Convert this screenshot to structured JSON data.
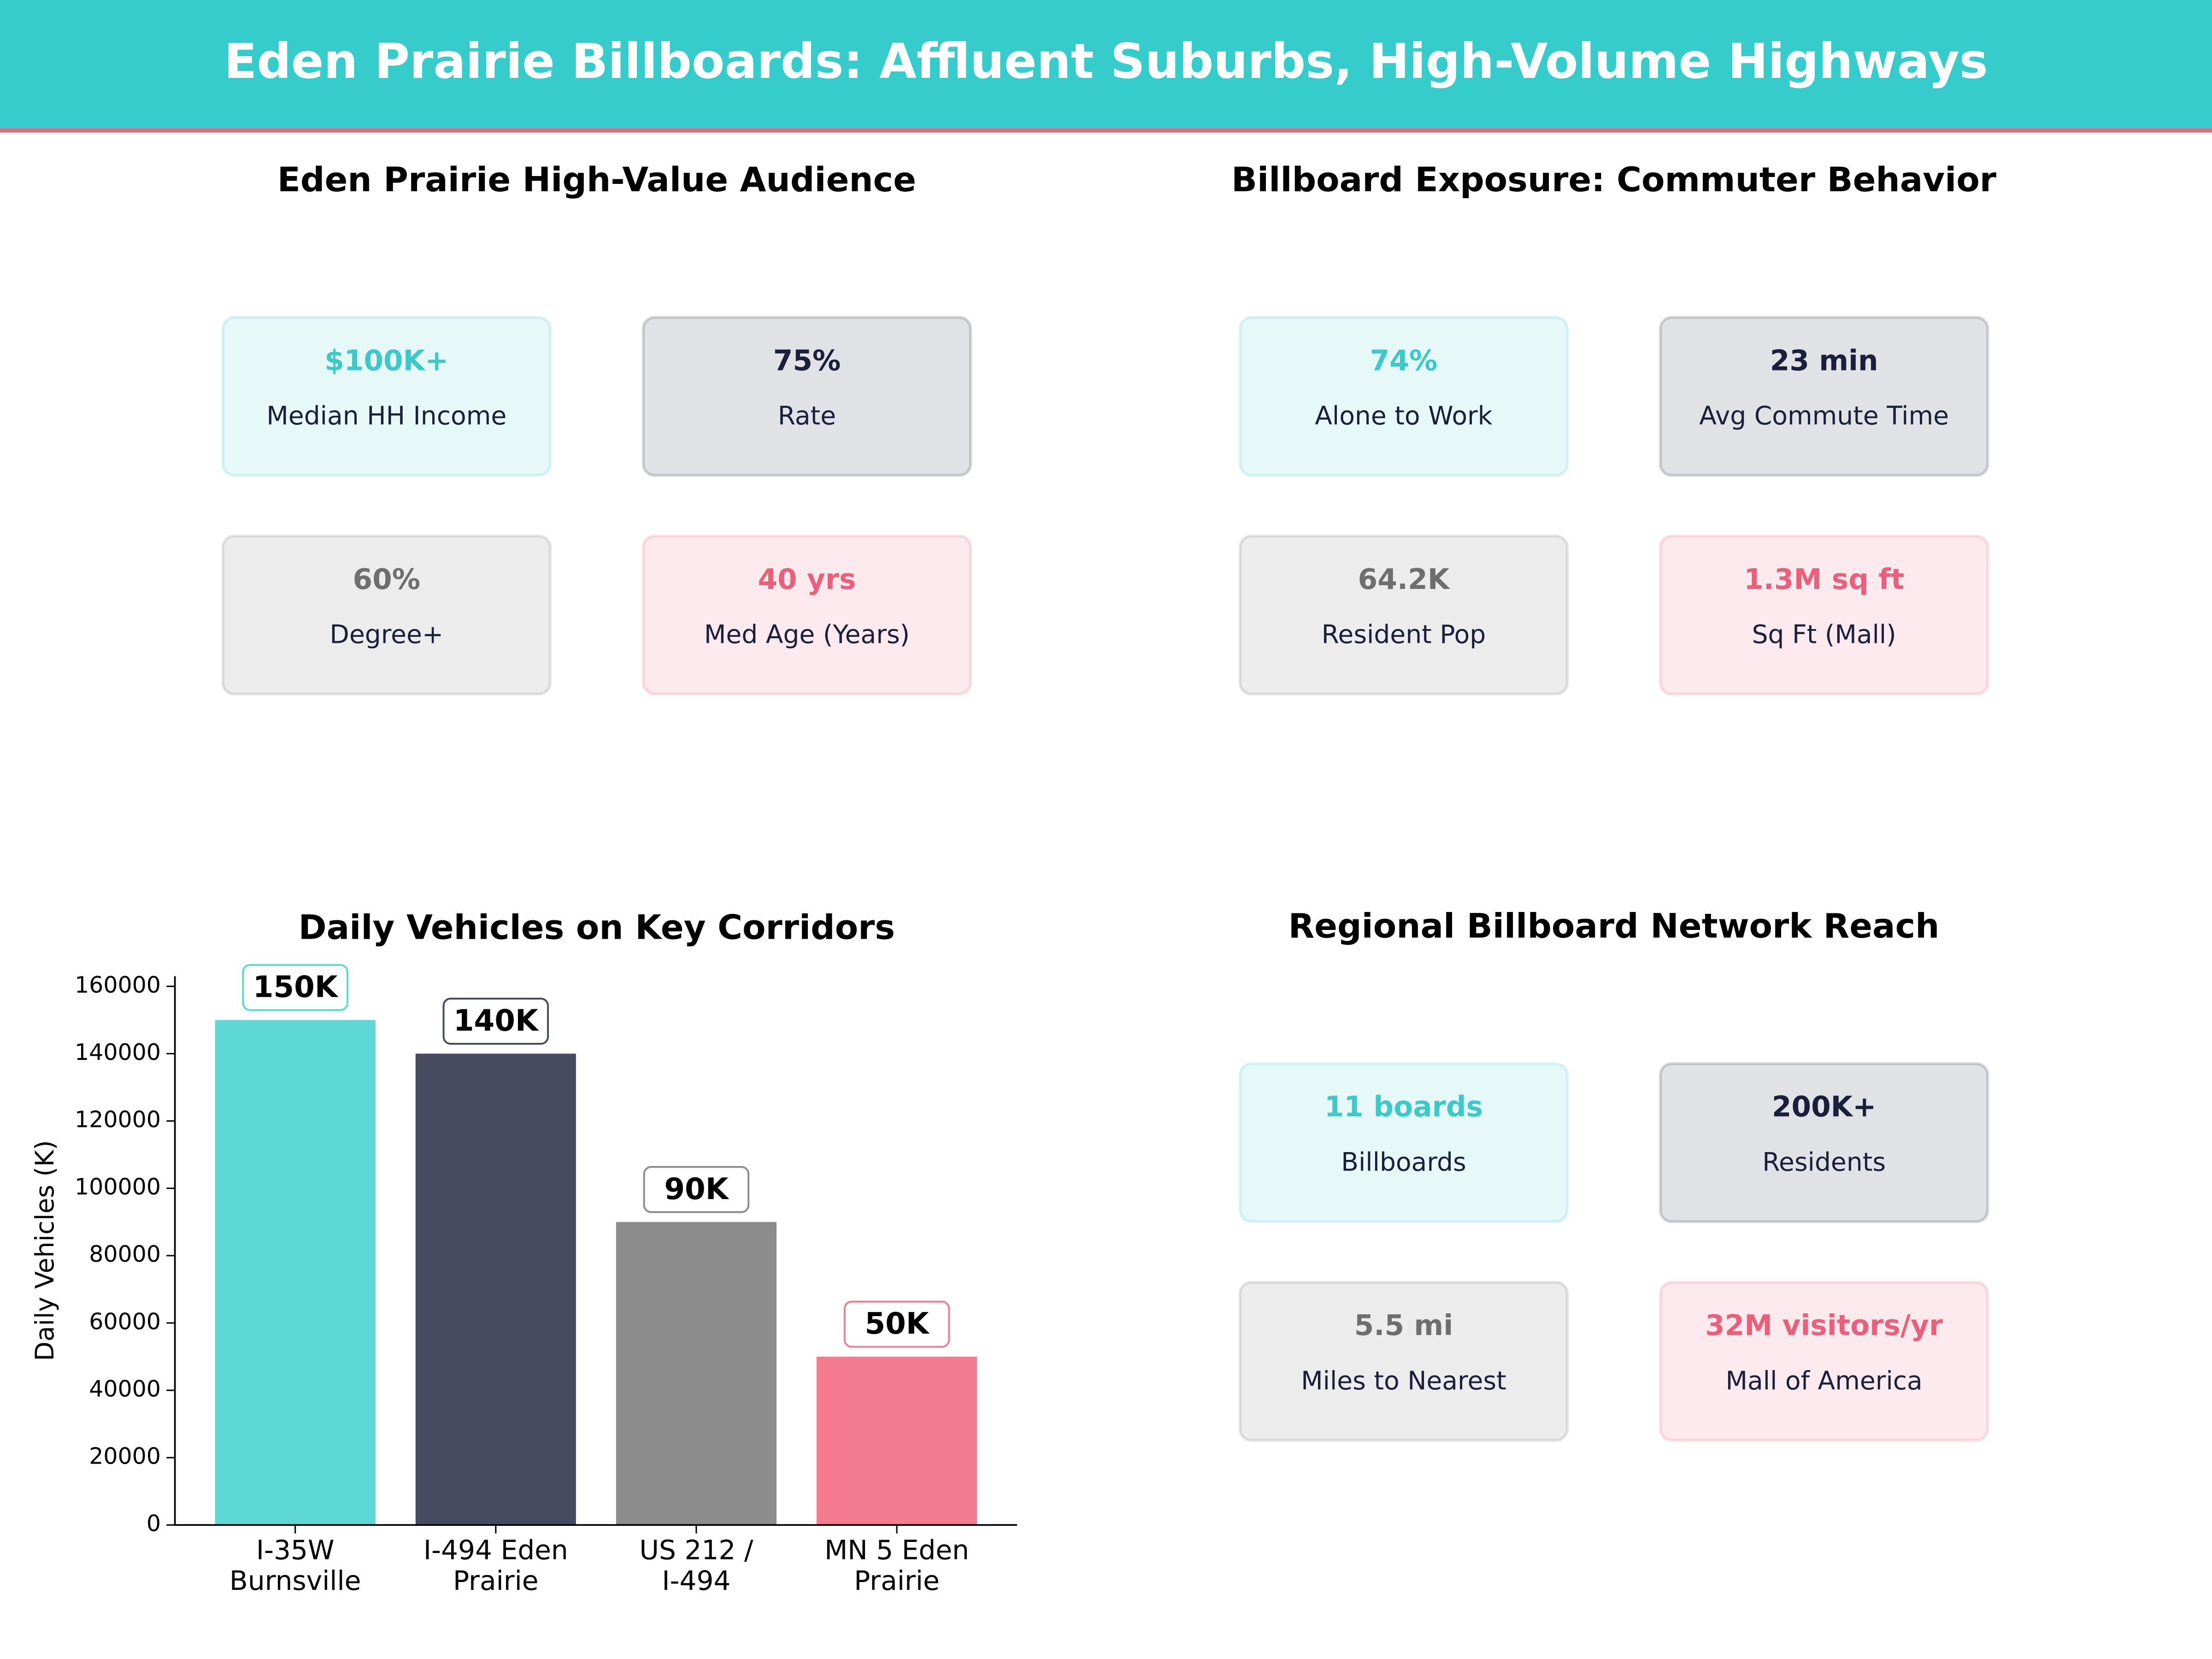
{
  "title": "Eden Prairie Billboards: Affluent Suburbs, High-Volume Highways",
  "kpi_panels": [
    {
      "title": "Eden Prairie High-Value Audience",
      "cards": [
        {
          "value": "$100K+",
          "label": "Median HH Income",
          "color": "#3ec8c8"
        },
        {
          "value": "75%",
          "label": "Rate",
          "color": "#1a1f3a"
        },
        {
          "value": "60%",
          "label": "Degree+",
          "color": "#6e6e6e"
        },
        {
          "value": "40 yrs",
          "label": "Med Age (Years)",
          "color": "#e8607a"
        }
      ]
    },
    {
      "title": "Billboard Exposure: Commuter Behavior",
      "cards": [
        {
          "value": "74%",
          "label": "Alone to Work",
          "color": "#3ec8c8"
        },
        {
          "value": "23 min",
          "label": "Avg Commute Time",
          "color": "#1a1f3a"
        },
        {
          "value": "64.2K",
          "label": "Resident Pop",
          "color": "#6e6e6e"
        },
        {
          "value": "1.3M sq ft",
          "label": "Sq Ft (Mall)",
          "color": "#e8607a"
        }
      ]
    },
    {
      "title": "Regional Billboard Network Reach",
      "cards": [
        {
          "value": "11 boards",
          "label": "Billboards",
          "color": "#3ec8c8"
        },
        {
          "value": "200K+",
          "label": "Residents",
          "color": "#1a1f3a"
        },
        {
          "value": "5.5 mi",
          "label": "Miles to Nearest",
          "color": "#6e6e6e"
        },
        {
          "value": "32M visitors/yr",
          "label": "Mall of America",
          "color": "#e8607a"
        }
      ]
    }
  ],
  "chart_data": {
    "type": "bar",
    "title": "Daily Vehicles on Key Corridors",
    "y_label": "Daily Vehicles (K)",
    "categories": [
      "I-35W\nBurnsville",
      "I-494 Eden\nPrairie",
      "US 212 /\nI-494",
      "MN 5 Eden\nPrairie"
    ],
    "values": [
      150000,
      140000,
      90000,
      50000
    ],
    "value_labels": [
      "150K",
      "140K",
      "90K",
      "50K"
    ],
    "colors": [
      "#5dd8d4",
      "#474b61",
      "#8c8c8c",
      "#f47c91"
    ],
    "ylim": [
      0,
      163000
    ],
    "yticks": [
      0,
      20000,
      40000,
      60000,
      80000,
      100000,
      120000,
      140000,
      160000
    ],
    "grid": false
  }
}
